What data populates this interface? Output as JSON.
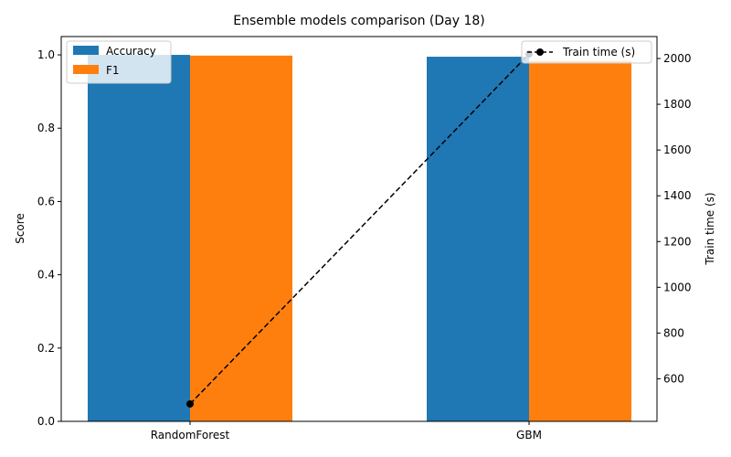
{
  "chart_data": {
    "type": "bar",
    "title": "Ensemble models comparison (Day 18)",
    "categories": [
      "RandomForest",
      "GBM"
    ],
    "series": [
      {
        "name": "Accuracy",
        "values": [
          1.0,
          0.995
        ],
        "color": "#1f77b4"
      },
      {
        "name": "F1",
        "values": [
          0.998,
          0.983
        ],
        "color": "#ff7f0e"
      }
    ],
    "ylabel": "Score",
    "ylim": [
      0,
      1.05
    ],
    "yticks": [
      "0.0",
      "0.2",
      "0.4",
      "0.6",
      "0.8",
      "1.0"
    ],
    "secondary": {
      "type": "line",
      "name": "Train time (s)",
      "values": [
        490,
        2020
      ],
      "color": "#000000",
      "style": "dashed",
      "marker": "circle",
      "ylabel": "Train time (s)",
      "ylim": [
        414,
        2096
      ],
      "yticks": [
        "600",
        "800",
        "1000",
        "1200",
        "1400",
        "1600",
        "1800",
        "2000"
      ]
    },
    "legend_left": "top-left",
    "legend_right": "top-right",
    "grid": false
  }
}
